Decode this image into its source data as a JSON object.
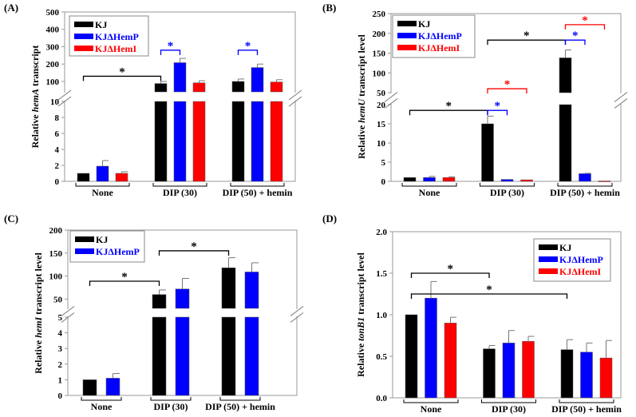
{
  "colors": {
    "KJ": "#000000",
    "KJdHemP": "#0000ff",
    "KJdHemI": "#ff0000"
  },
  "chart_data": [
    {
      "type": "bar",
      "panel": "(A)",
      "ylabel": [
        "Relative ",
        "hemA",
        " transcript"
      ],
      "categories": [
        "None",
        "DIP (30)",
        "DIP (50) + hemin"
      ],
      "legend": [
        "KJ",
        "KJΔHemP",
        "KJΔHemI"
      ],
      "legend_placement": "top-left",
      "axis_break": true,
      "lower_range": [
        0,
        10
      ],
      "lower_ticks": [
        0,
        2,
        4,
        6,
        8,
        10
      ],
      "upper_range": [
        40,
        500
      ],
      "upper_ticks": [
        100,
        200,
        300,
        400,
        500
      ],
      "series": [
        {
          "name": "KJ",
          "values": [
            1.0,
            88,
            100
          ],
          "errors": [
            0,
            12,
            14
          ]
        },
        {
          "name": "KJΔHemP",
          "values": [
            1.9,
            208,
            180
          ],
          "errors": [
            0.7,
            25,
            20
          ]
        },
        {
          "name": "KJΔHemI",
          "values": [
            1.0,
            92,
            97
          ],
          "errors": [
            0.2,
            12,
            13
          ]
        }
      ],
      "annotations": [
        {
          "label": "*",
          "from": [
            0,
            0
          ],
          "to": [
            1,
            0
          ],
          "y": 130,
          "color": "#000000"
        },
        {
          "label": "*",
          "from": [
            1,
            0
          ],
          "to": [
            1,
            1
          ],
          "y": 280,
          "color": "#0000ff"
        },
        {
          "label": "*",
          "from": [
            2,
            0
          ],
          "to": [
            2,
            1
          ],
          "y": 280,
          "color": "#0000ff"
        }
      ]
    },
    {
      "type": "bar",
      "panel": "(B)",
      "ylabel": [
        "Relative ",
        "hemU",
        " transcript level"
      ],
      "categories": [
        "None",
        "DIP (30)",
        "DIP (50) + hemin"
      ],
      "legend": [
        "KJ",
        "KJΔHemP",
        "KJΔHemI"
      ],
      "legend_placement": "top-left",
      "axis_break": true,
      "lower_range": [
        0,
        20
      ],
      "lower_ticks": [
        0,
        5,
        10,
        15,
        20
      ],
      "upper_range": [
        50,
        250
      ],
      "upper_ticks": [
        50,
        100,
        150,
        200,
        250
      ],
      "series": [
        {
          "name": "KJ",
          "values": [
            1.0,
            15,
            138
          ],
          "errors": [
            0,
            2,
            20
          ]
        },
        {
          "name": "KJΔHemP",
          "values": [
            1.0,
            0.5,
            2.0
          ],
          "errors": [
            0.3,
            0,
            0.1
          ]
        },
        {
          "name": "KJΔHemI",
          "values": [
            1.0,
            0.4,
            0.1
          ],
          "errors": [
            0.2,
            0,
            0
          ]
        }
      ],
      "annotations": [
        {
          "label": "*",
          "from": [
            0,
            0
          ],
          "to": [
            1,
            0
          ],
          "y": 18.5,
          "color": "#000000"
        },
        {
          "label": "*",
          "from": [
            1,
            0
          ],
          "to": [
            1,
            1
          ],
          "y": 18.5,
          "color": "#0000ff"
        },
        {
          "label": "*",
          "from": [
            1,
            0
          ],
          "to": [
            1,
            2
          ],
          "y": 60,
          "color": "#ff0000"
        },
        {
          "label": "*",
          "from": [
            1,
            0
          ],
          "to": [
            2,
            0
          ],
          "y": 183,
          "color": "#000000"
        },
        {
          "label": "*",
          "from": [
            2,
            0
          ],
          "to": [
            2,
            1
          ],
          "y": 183,
          "color": "#0000ff"
        },
        {
          "label": "*",
          "from": [
            2,
            0
          ],
          "to": [
            2,
            2
          ],
          "y": 222,
          "color": "#ff0000"
        }
      ]
    },
    {
      "type": "bar",
      "panel": "(C)",
      "ylabel": [
        "Relative ",
        "hemI",
        " transcript level"
      ],
      "categories": [
        "None",
        "DIP (30)",
        "DIP (50) + hemin"
      ],
      "legend": [
        "KJ",
        "KJΔHemP"
      ],
      "legend_placement": "top-left",
      "axis_break": true,
      "lower_range": [
        0,
        5
      ],
      "lower_ticks": [
        0,
        1,
        2,
        3,
        4,
        5
      ],
      "upper_range": [
        30,
        200
      ],
      "upper_ticks": [
        50,
        100,
        150,
        200
      ],
      "series": [
        {
          "name": "KJ",
          "values": [
            1.0,
            60,
            118
          ],
          "errors": [
            0,
            10,
            22
          ]
        },
        {
          "name": "KJΔHemP",
          "values": [
            1.1,
            72,
            109
          ],
          "errors": [
            0.3,
            23,
            20
          ]
        }
      ],
      "annotations": [
        {
          "label": "*",
          "from": [
            0,
            0
          ],
          "to": [
            1,
            0
          ],
          "y": 89,
          "color": "#000000"
        },
        {
          "label": "*",
          "from": [
            1,
            0
          ],
          "to": [
            2,
            0
          ],
          "y": 155,
          "color": "#000000"
        }
      ]
    },
    {
      "type": "bar",
      "panel": "(D)",
      "ylabel": [
        "Relative ",
        "tonB1",
        " transcript level"
      ],
      "categories": [
        "None",
        "DIP (30)",
        "DIP (50) + hemin"
      ],
      "legend": [
        "KJ",
        "KJΔHemP",
        "KJΔHemI"
      ],
      "legend_placement": "top-right",
      "axis_break": false,
      "ylim": [
        0,
        2
      ],
      "ticks": [
        "0.0",
        "0.5",
        "1.0",
        "1.5",
        "2.0"
      ],
      "series": [
        {
          "name": "KJ",
          "values": [
            1.0,
            0.59,
            0.58
          ],
          "errors": [
            0,
            0.04,
            0.12
          ]
        },
        {
          "name": "KJΔHemP",
          "values": [
            1.2,
            0.66,
            0.55
          ],
          "errors": [
            0.2,
            0.15,
            0.11
          ]
        },
        {
          "name": "KJΔHemI",
          "values": [
            0.9,
            0.68,
            0.48
          ],
          "errors": [
            0.07,
            0.06,
            0.21
          ]
        }
      ],
      "annotations": [
        {
          "label": "*",
          "from": [
            0,
            0
          ],
          "to": [
            1,
            0
          ],
          "y": 1.5,
          "color": "#000000"
        },
        {
          "label": "*",
          "from": [
            0,
            0
          ],
          "to": [
            2,
            0
          ],
          "y": 1.25,
          "color": "#000000"
        }
      ]
    }
  ]
}
